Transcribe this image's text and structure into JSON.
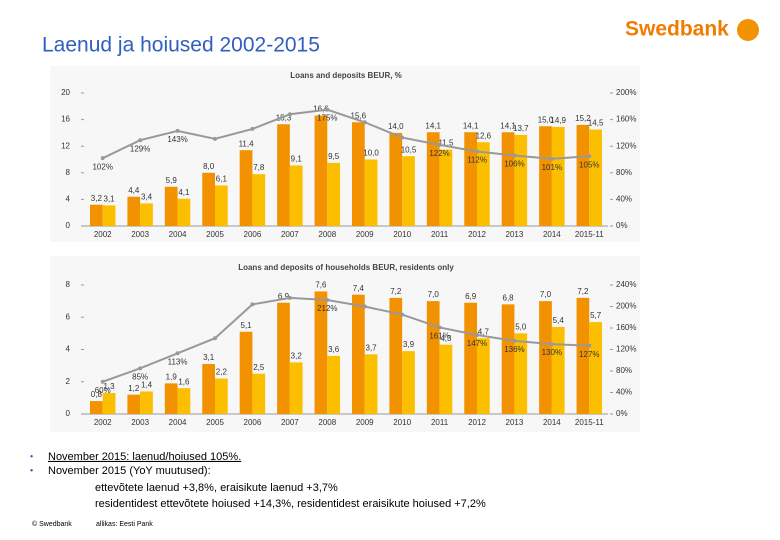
{
  "slide": {
    "title": "Laenud ja hoiused 2002-2015",
    "logo": "Swedbank",
    "bullets": [
      "November 2015: laenud/hoiused 105%.",
      "November 2015 (YoY muutused):"
    ],
    "sub_lines": [
      "ettevõtete laenud +3,8%, eraisikute laenud +3,7%",
      "residentidest ettevõtete hoiused +14,3%, residentidest eraisikute hoiused +7,2%"
    ],
    "footer": [
      "© Swedbank",
      "allikas: Eesti Pank"
    ]
  },
  "chart_data": [
    {
      "type": "combo",
      "title": "Loans and deposits BEUR, %",
      "categories": [
        "2002",
        "2003",
        "2004",
        "2005",
        "2006",
        "2007",
        "2008",
        "2009",
        "2010",
        "2011",
        "2012",
        "2013",
        "2014",
        "2015-11"
      ],
      "series": [
        {
          "name": "Loans",
          "color": "#f39200",
          "values": [
            3.2,
            4.4,
            5.9,
            8.0,
            11.4,
            15.3,
            16.6,
            15.6,
            14.0,
            14.1,
            14.1,
            14.1,
            15.0,
            15.2
          ],
          "value_labels": [
            "3,2",
            "4,4",
            "5,9",
            "8,0",
            "11,4",
            "15,3",
            "16,6",
            "15,6",
            "14,0",
            "14,1",
            "14,1",
            "14,1",
            "15,0",
            "15,2"
          ]
        },
        {
          "name": "Deposits",
          "color": "#fcbf00",
          "values": [
            3.1,
            3.4,
            4.1,
            6.1,
            7.8,
            9.1,
            9.5,
            10.0,
            10.5,
            11.5,
            12.6,
            13.7,
            14.9,
            14.5
          ],
          "value_labels": [
            "3,1",
            "3,4",
            "4,1",
            "6,1",
            "7,8",
            "9,1",
            "9,5",
            "10,0",
            "10,5",
            "11,5",
            "12,6",
            "13,7",
            "14,9",
            "14,5"
          ]
        },
        {
          "name": "Loans/deposits",
          "type": "line",
          "axis": "y2",
          "color": "#999999",
          "values": [
            102,
            129,
            143,
            131,
            146,
            168,
            175,
            156,
            133,
            122,
            112,
            106,
            101,
            105
          ],
          "value_labels": [
            "102%",
            "129%",
            "143%",
            null,
            null,
            null,
            "175%",
            null,
            null,
            "122%",
            "112%",
            "106%",
            "101%",
            "105%"
          ]
        }
      ],
      "ylim": [
        0,
        20
      ],
      "yticks": [
        0,
        4,
        8,
        12,
        16,
        20
      ],
      "y2lim": [
        0,
        200
      ],
      "y2ticks": [
        {
          "value": 0,
          "label": "0%"
        },
        {
          "value": 40,
          "label": "40%"
        },
        {
          "value": 80,
          "label": "80%"
        },
        {
          "value": 120,
          "label": "120%"
        },
        {
          "value": 160,
          "label": "160%"
        },
        {
          "value": 200,
          "label": "200%"
        }
      ]
    },
    {
      "type": "combo",
      "title": "Loans and deposits of households BEUR, residents only",
      "categories": [
        "2002",
        "2003",
        "2004",
        "2005",
        "2006",
        "2007",
        "2008",
        "2009",
        "2010",
        "2011",
        "2012",
        "2013",
        "2014",
        "2015-11"
      ],
      "series": [
        {
          "name": "Loans",
          "color": "#f39200",
          "values": [
            0.8,
            1.2,
            1.9,
            3.1,
            5.1,
            6.9,
            7.6,
            7.4,
            7.2,
            7.0,
            6.9,
            6.8,
            7.0,
            7.2
          ],
          "value_labels": [
            "0,8",
            "1,2",
            "1,9",
            "3,1",
            "5,1",
            "6,9",
            "7,6",
            "7,4",
            "7,2",
            "7,0",
            "6,9",
            "6,8",
            "7,0",
            "7,2"
          ]
        },
        {
          "name": "Deposits",
          "color": "#fcbf00",
          "values": [
            1.3,
            1.4,
            1.6,
            2.2,
            2.5,
            3.2,
            3.6,
            3.7,
            3.9,
            4.3,
            4.7,
            5.0,
            5.4,
            5.7
          ],
          "value_labels": [
            "1,3",
            "1,4",
            "1,6",
            "2,2",
            "2,5",
            "3,2",
            "3,6",
            "3,7",
            "3,9",
            "4,3",
            "4,7",
            "5,0",
            "5,4",
            "5,7"
          ]
        },
        {
          "name": "Loans/deposits",
          "type": "line",
          "axis": "y2",
          "color": "#999999",
          "values": [
            60,
            85,
            113,
            141,
            204,
            216,
            212,
            200,
            185,
            161,
            147,
            136,
            130,
            127
          ],
          "value_labels": [
            "60%",
            "85%",
            "113%",
            null,
            null,
            null,
            "212%",
            null,
            null,
            "161%",
            "147%",
            "136%",
            "130%",
            "127%"
          ]
        }
      ],
      "ylim": [
        0,
        8
      ],
      "yticks": [
        0,
        2,
        4,
        6,
        8
      ],
      "y2lim": [
        0,
        240
      ],
      "y2ticks": [
        {
          "value": 0,
          "label": "0%"
        },
        {
          "value": 40,
          "label": "40%"
        },
        {
          "value": 80,
          "label": "80%"
        },
        {
          "value": 120,
          "label": "120%"
        },
        {
          "value": 160,
          "label": "160%"
        },
        {
          "value": 200,
          "label": "200%"
        },
        {
          "value": 240,
          "label": "240%"
        }
      ]
    }
  ]
}
